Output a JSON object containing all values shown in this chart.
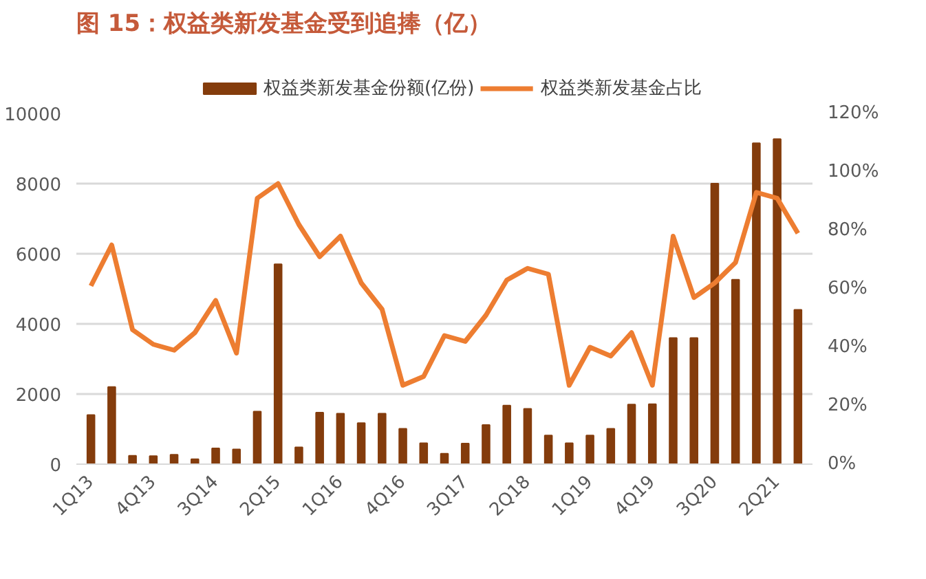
{
  "chart_data": {
    "type": "bar",
    "title": "图 15：权益类新发基金受到追捧（亿）",
    "categories": [
      "1Q13",
      null,
      null,
      "4Q13",
      null,
      null,
      "3Q14",
      null,
      null,
      "2Q15",
      null,
      null,
      "1Q16",
      null,
      null,
      "4Q16",
      null,
      null,
      "3Q17",
      null,
      null,
      "2Q18",
      null,
      null,
      "1Q19",
      null,
      null,
      "4Q19",
      null,
      null,
      "3Q20",
      null,
      null,
      "2Q21",
      null
    ],
    "series": [
      {
        "name": "权益类新发基金份额(亿份)",
        "color": "#843c0c",
        "values": [
          1400,
          2200,
          240,
          230,
          270,
          140,
          450,
          420,
          1500,
          5700,
          480,
          1470,
          1440,
          1170,
          1440,
          1010,
          600,
          300,
          590,
          1120,
          1670,
          1580,
          820,
          600,
          820,
          1010,
          1700,
          1710,
          3600,
          3600,
          8000,
          5260,
          9150,
          9270,
          4400
        ]
      },
      {
        "name": "权益类新发基金占比",
        "type": "line",
        "axis": "y2",
        "color": "#ed7d31",
        "values": [
          61,
          75,
          46,
          41,
          39,
          45,
          56,
          38,
          91,
          96,
          82,
          71,
          78,
          62,
          53,
          27,
          30,
          44,
          42,
          51,
          63,
          67,
          65,
          27,
          40,
          37,
          45,
          27,
          78,
          57,
          62,
          69,
          93,
          91,
          79
        ]
      }
    ],
    "ylim": [
      0,
      10000
    ],
    "yticks": [
      0,
      2000,
      4000,
      6000,
      8000,
      10000
    ],
    "y2lim": [
      0,
      120
    ],
    "y2ticks": [
      {
        "value": 0,
        "label": "0%"
      },
      {
        "value": 20,
        "label": "20%"
      },
      {
        "value": 40,
        "label": "40%"
      },
      {
        "value": 60,
        "label": "60%"
      },
      {
        "value": 80,
        "label": "80%"
      },
      {
        "value": 100,
        "label": "100%"
      },
      {
        "value": 120,
        "label": "120%"
      }
    ],
    "grid": "y",
    "legend": "top",
    "line_style": "solid"
  }
}
